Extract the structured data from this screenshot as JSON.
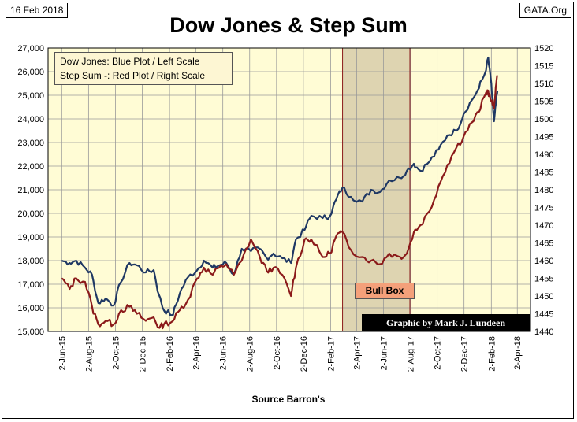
{
  "header": {
    "date": "16 Feb 2018",
    "site": "GATA.Org"
  },
  "chart_data": {
    "type": "line",
    "title": "Dow Jones & Step Sum",
    "xlabel": "Source Barron's",
    "x_tick_labels": [
      "2-Jun-15",
      "2-Aug-15",
      "2-Oct-15",
      "2-Dec-15",
      "2-Feb-16",
      "2-Apr-16",
      "2-Jun-16",
      "2-Aug-16",
      "2-Oct-16",
      "2-Dec-16",
      "2-Feb-17",
      "2-Apr-17",
      "2-Jun-17",
      "2-Aug-17",
      "2-Oct-17",
      "2-Dec-17",
      "2-Feb-18",
      "2-Apr-18"
    ],
    "left_axis": {
      "ylim": [
        15000,
        27000
      ],
      "ticks": [
        "15,000",
        "16,000",
        "17,000",
        "18,000",
        "19,000",
        "20,000",
        "21,000",
        "22,000",
        "23,000",
        "24,000",
        "25,000",
        "26,000",
        "27,000"
      ]
    },
    "right_axis": {
      "ylim": [
        1440,
        1520
      ],
      "ticks": [
        "1440",
        "1445",
        "1450",
        "1455",
        "1460",
        "1465",
        "1470",
        "1475",
        "1480",
        "1485",
        "1490",
        "1495",
        "1500",
        "1505",
        "1510",
        "1515",
        "1520"
      ]
    },
    "legend": [
      "Dow Jones: Blue Plot / Left Scale",
      "Step Sum -: Red Plot / Right Scale"
    ],
    "legend_position": "top-left",
    "grid": true,
    "shaded_region": {
      "label": "Bull Box",
      "x_start": "2017-03-01",
      "x_end": "2017-08-01",
      "color": "#d8ccaa"
    },
    "credit": "Graphic by Mark J. Lundeen",
    "series": [
      {
        "name": "Dow Jones",
        "axis": "left",
        "color": "#1f3864",
        "points": [
          [
            "2015-06-02",
            18000
          ],
          [
            "2015-06-20",
            17900
          ],
          [
            "2015-07-05",
            18000
          ],
          [
            "2015-07-25",
            17700
          ],
          [
            "2015-08-10",
            17400
          ],
          [
            "2015-08-24",
            16200
          ],
          [
            "2015-09-10",
            16400
          ],
          [
            "2015-09-28",
            16100
          ],
          [
            "2015-10-15",
            17100
          ],
          [
            "2015-11-03",
            17900
          ],
          [
            "2015-11-20",
            17800
          ],
          [
            "2015-12-10",
            17500
          ],
          [
            "2015-12-28",
            17600
          ],
          [
            "2016-01-10",
            16500
          ],
          [
            "2016-01-20",
            15900
          ],
          [
            "2016-02-10",
            15700
          ],
          [
            "2016-02-25",
            16600
          ],
          [
            "2016-03-15",
            17300
          ],
          [
            "2016-04-05",
            17600
          ],
          [
            "2016-04-20",
            18000
          ],
          [
            "2016-05-10",
            17700
          ],
          [
            "2016-05-25",
            17800
          ],
          [
            "2016-06-10",
            17900
          ],
          [
            "2016-06-27",
            17400
          ],
          [
            "2016-07-15",
            18500
          ],
          [
            "2016-08-05",
            18400
          ],
          [
            "2016-08-25",
            18500
          ],
          [
            "2016-09-10",
            18100
          ],
          [
            "2016-09-25",
            18300
          ],
          [
            "2016-10-15",
            18100
          ],
          [
            "2016-11-04",
            17900
          ],
          [
            "2016-11-15",
            18900
          ],
          [
            "2016-12-05",
            19300
          ],
          [
            "2016-12-20",
            19900
          ],
          [
            "2017-01-15",
            19800
          ],
          [
            "2017-02-01",
            19900
          ],
          [
            "2017-02-15",
            20600
          ],
          [
            "2017-03-01",
            21100
          ],
          [
            "2017-03-20",
            20700
          ],
          [
            "2017-04-15",
            20500
          ],
          [
            "2017-05-05",
            21000
          ],
          [
            "2017-05-25",
            20900
          ],
          [
            "2017-06-15",
            21400
          ],
          [
            "2017-07-10",
            21500
          ],
          [
            "2017-07-25",
            21800
          ],
          [
            "2017-08-10",
            22100
          ],
          [
            "2017-08-25",
            21800
          ],
          [
            "2017-09-15",
            22200
          ],
          [
            "2017-10-05",
            22700
          ],
          [
            "2017-10-25",
            23300
          ],
          [
            "2017-11-15",
            23500
          ],
          [
            "2017-12-01",
            24200
          ],
          [
            "2017-12-20",
            24800
          ],
          [
            "2018-01-05",
            25300
          ],
          [
            "2018-01-20",
            26000
          ],
          [
            "2018-01-26",
            26600
          ],
          [
            "2018-02-02",
            25500
          ],
          [
            "2018-02-08",
            23900
          ],
          [
            "2018-02-12",
            24600
          ],
          [
            "2018-02-16",
            25200
          ]
        ]
      },
      {
        "name": "Step Sum",
        "axis": "right",
        "color": "#8b1a1a",
        "points": [
          [
            "2015-06-02",
            1455
          ],
          [
            "2015-06-20",
            1452
          ],
          [
            "2015-07-05",
            1455
          ],
          [
            "2015-07-25",
            1454
          ],
          [
            "2015-08-10",
            1447
          ],
          [
            "2015-08-24",
            1442
          ],
          [
            "2015-09-10",
            1443
          ],
          [
            "2015-09-28",
            1442
          ],
          [
            "2015-10-15",
            1446
          ],
          [
            "2015-11-03",
            1447
          ],
          [
            "2015-11-20",
            1445
          ],
          [
            "2015-12-10",
            1443
          ],
          [
            "2015-12-28",
            1444
          ],
          [
            "2016-01-10",
            1441
          ],
          [
            "2016-01-20",
            1442
          ],
          [
            "2016-02-10",
            1443
          ],
          [
            "2016-02-25",
            1446
          ],
          [
            "2016-03-15",
            1449
          ],
          [
            "2016-04-05",
            1455
          ],
          [
            "2016-04-20",
            1458
          ],
          [
            "2016-05-10",
            1456
          ],
          [
            "2016-05-25",
            1458
          ],
          [
            "2016-06-10",
            1459
          ],
          [
            "2016-06-27",
            1456
          ],
          [
            "2016-07-15",
            1460
          ],
          [
            "2016-08-05",
            1466
          ],
          [
            "2016-08-25",
            1461
          ],
          [
            "2016-09-10",
            1457
          ],
          [
            "2016-09-25",
            1458
          ],
          [
            "2016-10-15",
            1456
          ],
          [
            "2016-11-04",
            1450
          ],
          [
            "2016-11-15",
            1458
          ],
          [
            "2016-12-05",
            1466
          ],
          [
            "2016-12-20",
            1466
          ],
          [
            "2017-01-15",
            1461
          ],
          [
            "2017-02-01",
            1462
          ],
          [
            "2017-02-15",
            1467
          ],
          [
            "2017-03-01",
            1468
          ],
          [
            "2017-03-20",
            1463
          ],
          [
            "2017-04-15",
            1461
          ],
          [
            "2017-05-05",
            1460
          ],
          [
            "2017-05-25",
            1459
          ],
          [
            "2017-06-15",
            1462
          ],
          [
            "2017-07-10",
            1461
          ],
          [
            "2017-07-25",
            1462
          ],
          [
            "2017-08-10",
            1468
          ],
          [
            "2017-08-25",
            1470
          ],
          [
            "2017-09-15",
            1474
          ],
          [
            "2017-10-05",
            1481
          ],
          [
            "2017-10-25",
            1487
          ],
          [
            "2017-11-15",
            1492
          ],
          [
            "2017-12-01",
            1495
          ],
          [
            "2017-12-20",
            1499
          ],
          [
            "2018-01-05",
            1502
          ],
          [
            "2018-01-20",
            1507
          ],
          [
            "2018-01-26",
            1508
          ],
          [
            "2018-02-02",
            1505
          ],
          [
            "2018-02-08",
            1503
          ],
          [
            "2018-02-12",
            1509
          ],
          [
            "2018-02-16",
            1512
          ]
        ]
      }
    ]
  }
}
